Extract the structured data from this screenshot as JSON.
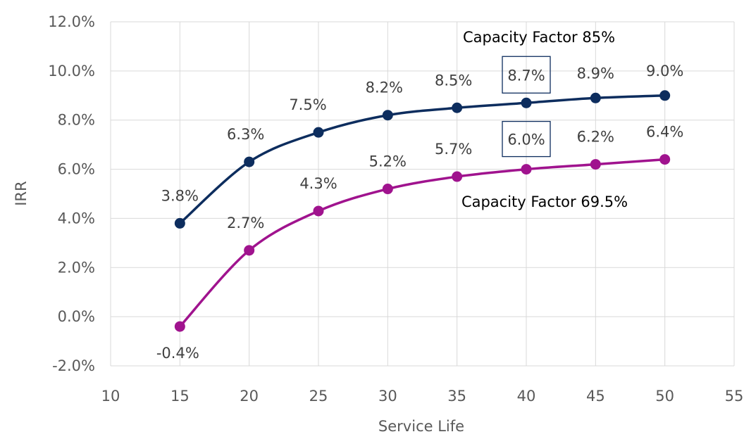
{
  "chart_data": {
    "type": "line",
    "xlabel": "Service Life",
    "ylabel": "IRR",
    "xlim": [
      10,
      55
    ],
    "ylim": [
      -2.0,
      12.0
    ],
    "x_ticks": [
      "10",
      "15",
      "20",
      "25",
      "30",
      "35",
      "40",
      "45",
      "50",
      "55"
    ],
    "y_ticks": [
      "-2.0%",
      "0.0%",
      "2.0%",
      "4.0%",
      "6.0%",
      "8.0%",
      "10.0%",
      "12.0%"
    ],
    "grid": "both",
    "legend": "none",
    "x": [
      15,
      20,
      25,
      30,
      35,
      40,
      45,
      50
    ],
    "series": [
      {
        "name": "Capacity Factor 85%",
        "color": "#0d2d5e",
        "values": [
          3.8,
          6.3,
          7.5,
          8.2,
          8.5,
          8.7,
          8.9,
          9.0
        ],
        "labels": [
          "3.8%",
          "6.3%",
          "7.5%",
          "8.2%",
          "8.5%",
          "8.7%",
          "8.9%",
          "9.0%"
        ],
        "boxed_index": 5
      },
      {
        "name": "Capacity Factor 69.5%",
        "color": "#a0138e",
        "values": [
          -0.4,
          2.7,
          4.3,
          5.2,
          5.7,
          6.0,
          6.2,
          6.4
        ],
        "labels": [
          "-0.4%",
          "2.7%",
          "4.3%",
          "5.2%",
          "5.7%",
          "6.0%",
          "6.2%",
          "6.4%"
        ],
        "boxed_index": 5
      }
    ]
  }
}
